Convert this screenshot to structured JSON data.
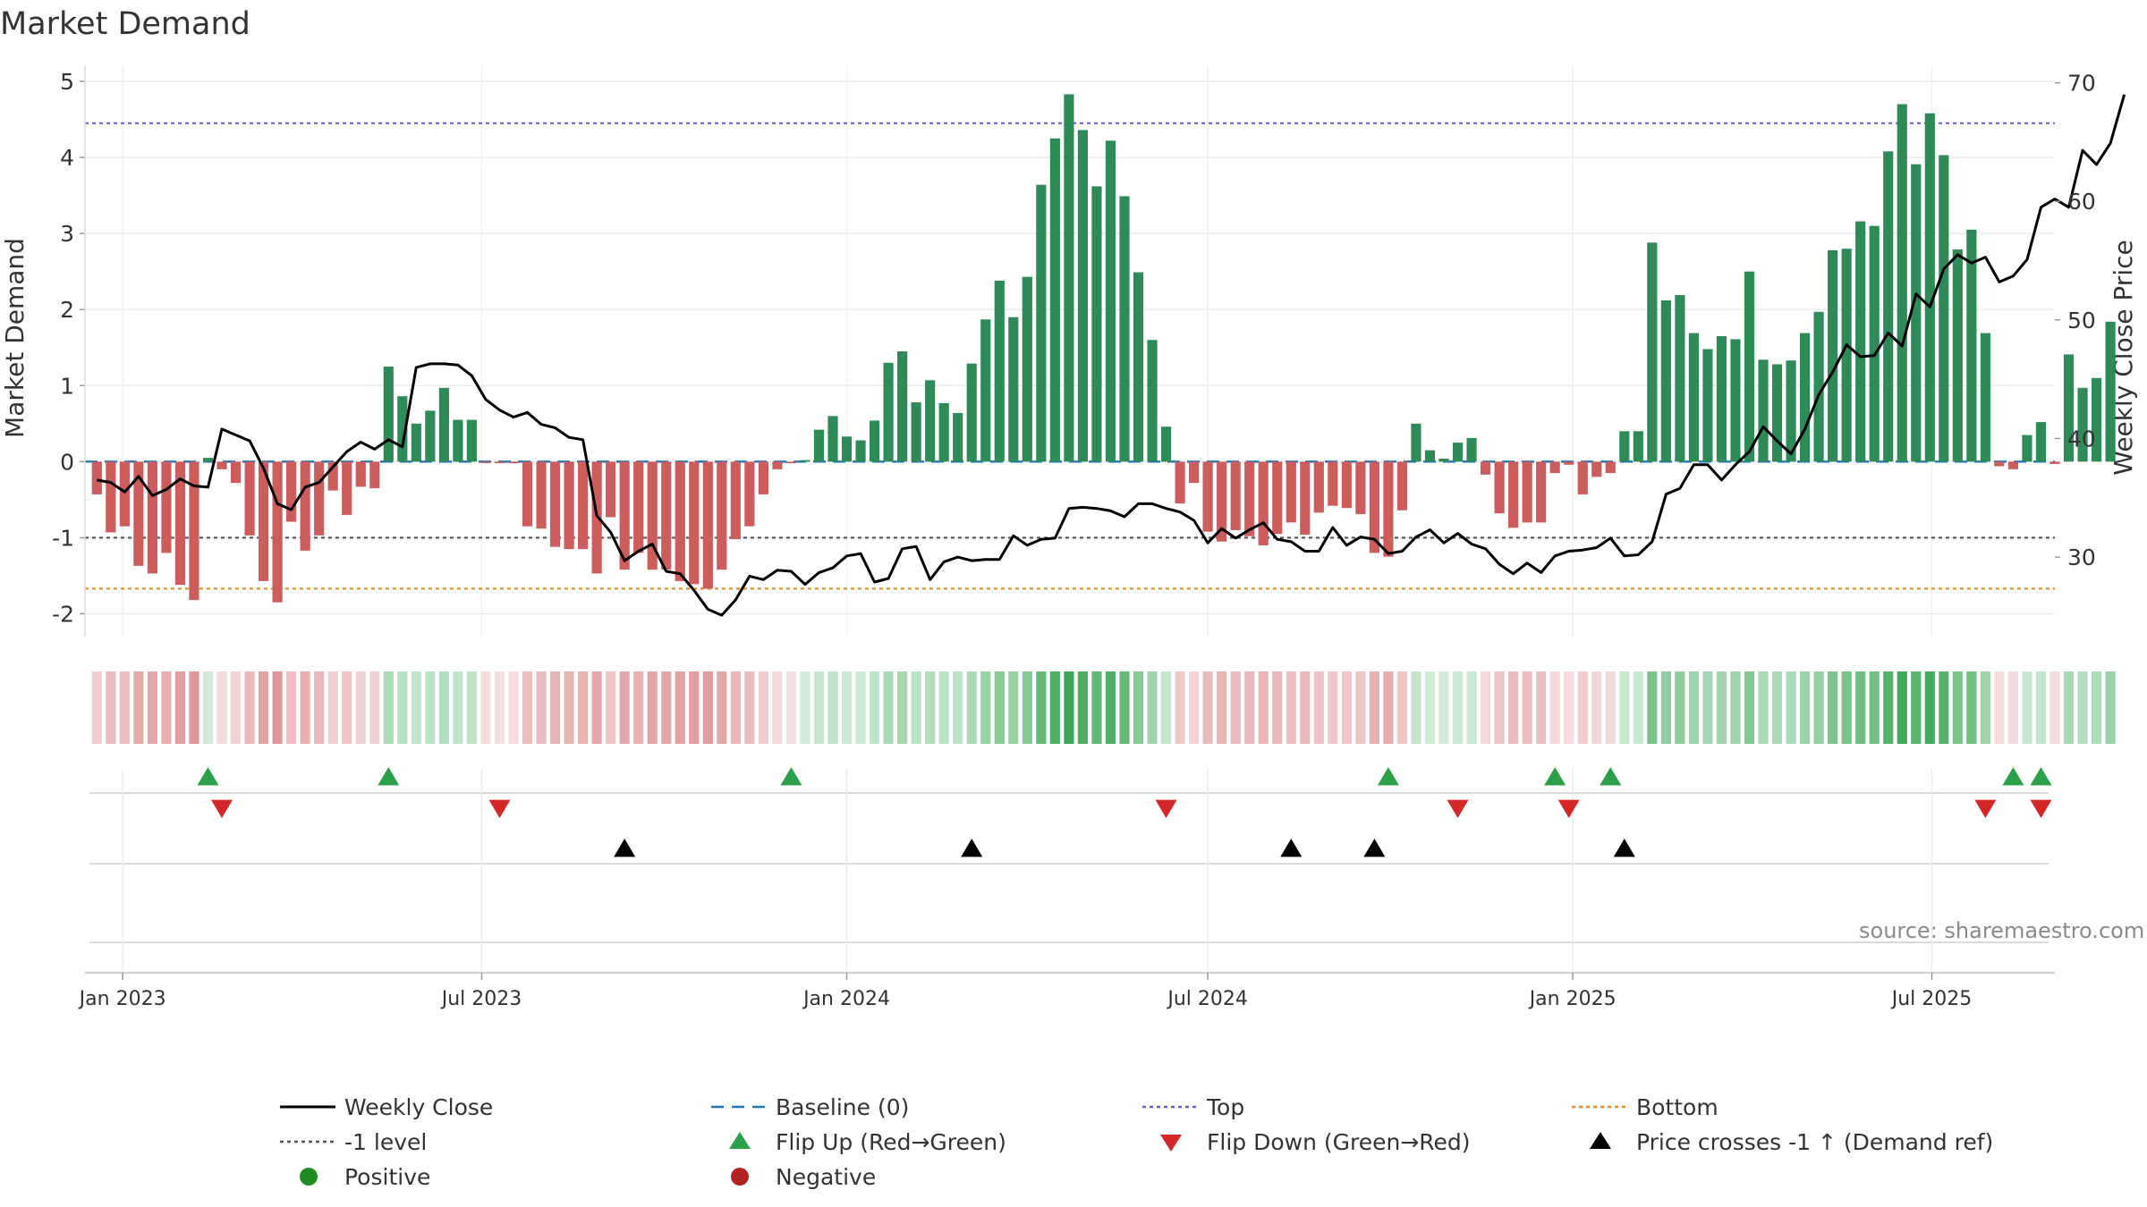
{
  "chart_data": {
    "type": "bar",
    "title": "Market Demand",
    "source": "source: sharemaestro.com",
    "ylabel_left": "Market Demand",
    "ylabel_right": "Weekly Close Price",
    "ylim_left": [
      -2.3,
      5.2
    ],
    "ylim_right": [
      23.3,
      71.4
    ],
    "yticks_left": [
      -2,
      -1,
      0,
      1,
      2,
      3,
      4,
      5
    ],
    "yticks_right": [
      30,
      40,
      50,
      60,
      70
    ],
    "levels": {
      "top": 4.45,
      "bottom": -1.67,
      "minus_one": -1,
      "baseline": 0
    },
    "x_start": "2022-12-19",
    "week_days": 7,
    "x_range_days": [
      -6,
      987
    ],
    "xticks": [
      {
        "label": "Jan 2023",
        "day": 13
      },
      {
        "label": "Jul 2023",
        "day": 194
      },
      {
        "label": "Jan 2024",
        "day": 378
      },
      {
        "label": "Jul 2024",
        "day": 560
      },
      {
        "label": "Jan 2025",
        "day": 744
      },
      {
        "label": "Jul 2025",
        "day": 925
      }
    ],
    "series": [
      {
        "name": "Market Demand",
        "values": [
          -0.43,
          -0.93,
          -0.85,
          -1.37,
          -1.47,
          -1.2,
          -1.62,
          -1.82,
          0.05,
          -0.1,
          -0.28,
          -0.97,
          -1.57,
          -1.85,
          -0.79,
          -1.17,
          -0.97,
          -0.38,
          -0.7,
          -0.33,
          -0.35,
          1.25,
          0.86,
          0.5,
          0.67,
          0.97,
          0.55,
          0.55,
          -0.02,
          -0.02,
          -0.02,
          -0.85,
          -0.88,
          -1.12,
          -1.15,
          -1.15,
          -1.47,
          -0.73,
          -1.42,
          -1.2,
          -1.42,
          -1.42,
          -1.57,
          -1.61,
          -1.67,
          -1.42,
          -1.02,
          -0.85,
          -0.43,
          -0.1,
          -0.02,
          0.02,
          0.42,
          0.6,
          0.33,
          0.28,
          0.54,
          1.3,
          1.45,
          0.78,
          1.07,
          0.77,
          0.64,
          1.29,
          1.87,
          2.38,
          1.9,
          2.43,
          3.64,
          4.25,
          4.83,
          4.36,
          3.62,
          4.22,
          3.49,
          2.49,
          1.6,
          0.46,
          -0.55,
          -0.28,
          -0.92,
          -1.05,
          -0.9,
          -0.98,
          -1.1,
          -0.95,
          -0.8,
          -0.96,
          -0.67,
          -0.58,
          -0.61,
          -0.69,
          -1.2,
          -1.25,
          -0.64,
          0.5,
          0.15,
          0.04,
          0.25,
          0.31,
          -0.17,
          -0.68,
          -0.87,
          -0.8,
          -0.8,
          -0.15,
          -0.04,
          -0.43,
          -0.2,
          -0.15,
          0.4,
          0.4,
          2.88,
          2.12,
          2.19,
          1.69,
          1.48,
          1.65,
          1.61,
          2.5,
          1.34,
          1.28,
          1.33,
          1.69,
          1.97,
          2.78,
          2.8,
          3.16,
          3.1,
          4.08,
          4.7,
          3.91,
          4.58,
          4.03,
          2.79,
          3.05,
          1.69,
          -0.06,
          -0.1,
          0.35,
          0.52,
          -0.03,
          1.41,
          0.97,
          1.1,
          1.84
        ]
      },
      {
        "name": "Weekly Close",
        "values": [
          36.5,
          36.3,
          35.5,
          36.8,
          35.2,
          35.7,
          36.6,
          36.0,
          35.9,
          40.8,
          40.3,
          39.8,
          37.5,
          34.5,
          34.0,
          35.9,
          36.3,
          37.6,
          38.9,
          39.7,
          39.1,
          39.9,
          39.3,
          46.0,
          46.3,
          46.3,
          46.2,
          45.3,
          43.3,
          42.4,
          41.8,
          42.2,
          41.2,
          40.9,
          40.1,
          39.9,
          33.5,
          32.1,
          29.7,
          30.5,
          31.1,
          28.8,
          28.6,
          27.2,
          25.6,
          25.1,
          26.4,
          28.4,
          28.1,
          28.9,
          28.8,
          27.7,
          28.7,
          29.1,
          30.1,
          30.3,
          27.9,
          28.2,
          30.7,
          30.9,
          28.1,
          29.6,
          30.0,
          29.7,
          29.8,
          29.8,
          31.8,
          31.0,
          31.5,
          31.6,
          34.1,
          34.2,
          34.1,
          33.9,
          33.4,
          34.5,
          34.5,
          34.1,
          33.8,
          33.1,
          31.2,
          32.4,
          31.6,
          32.3,
          32.9,
          31.5,
          31.3,
          30.5,
          30.5,
          32.5,
          31.0,
          31.7,
          31.5,
          30.3,
          30.5,
          31.7,
          32.3,
          31.2,
          32.0,
          31.1,
          30.7,
          29.4,
          28.6,
          29.5,
          28.7,
          30.1,
          30.5,
          30.6,
          30.8,
          31.6,
          30.1,
          30.2,
          31.3,
          35.3,
          35.8,
          37.8,
          37.8,
          36.5,
          37.8,
          38.9,
          41.0,
          39.8,
          38.7,
          40.8,
          43.7,
          45.6,
          47.9,
          46.9,
          47.0,
          48.9,
          47.8,
          52.2,
          51.1,
          54.3,
          55.5,
          54.8,
          55.3,
          53.2,
          53.7,
          55.1,
          59.5,
          60.2,
          59.5,
          64.3,
          63.1,
          64.9,
          69.0
        ]
      }
    ],
    "flip_up_weeks": [
      8,
      21,
      50,
      93,
      105,
      109,
      138,
      140
    ],
    "flip_down_weeks": [
      9,
      29,
      77,
      98,
      106,
      136,
      140
    ],
    "price_cross_weeks": [
      38,
      63,
      86,
      92,
      110
    ],
    "legend": [
      {
        "label": "Weekly Close",
        "marker": "solid-line",
        "color": "#000000"
      },
      {
        "label": "Baseline (0)",
        "marker": "dashed-line",
        "color": "#1f77b4"
      },
      {
        "label": "Top",
        "marker": "dotted-line",
        "color": "#6b5fd1"
      },
      {
        "label": "Bottom",
        "marker": "dotted-line",
        "color": "#e8892b"
      },
      {
        "label": "-1 level",
        "marker": "dotted-line",
        "color": "#555555"
      },
      {
        "label": "Flip Up (Red→Green)",
        "marker": "triangle-up",
        "color": "#2ca048"
      },
      {
        "label": "Flip Down (Green→Red)",
        "marker": "triangle-down",
        "color": "#d62728"
      },
      {
        "label": "Price crosses -1 ↑ (Demand ref)",
        "marker": "triangle-up",
        "color": "#000000"
      },
      {
        "label": "Positive",
        "marker": "circle",
        "color": "#228b22"
      },
      {
        "label": "Negative",
        "marker": "circle",
        "color": "#b22222"
      }
    ],
    "colors": {
      "positive_bar": "#2e8b57",
      "negative_bar": "#cd5c5c"
    }
  }
}
